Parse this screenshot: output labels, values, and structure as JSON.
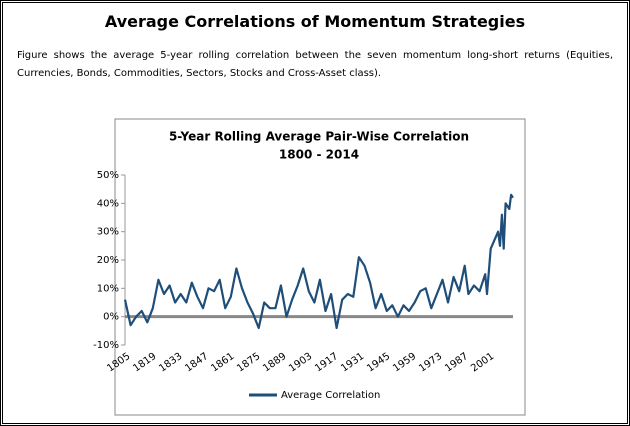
{
  "header": {
    "title": "Average Correlations of Momentum Strategies",
    "description": "Figure shows the average 5-year rolling correlation between the seven momentum long-short returns (Equities, Currencies, Bonds,  Commodities, Sectors, Stocks and Cross-Asset class)."
  },
  "chart_data": {
    "type": "line",
    "title": "5-Year Rolling Average Pair-Wise Correlation",
    "subtitle": "1800 - 2014",
    "x": [
      1805,
      1808,
      1811,
      1814,
      1817,
      1820,
      1823,
      1826,
      1829,
      1832,
      1835,
      1838,
      1841,
      1844,
      1847,
      1850,
      1853,
      1856,
      1859,
      1862,
      1865,
      1868,
      1871,
      1874,
      1877,
      1880,
      1883,
      1886,
      1889,
      1892,
      1895,
      1898,
      1901,
      1904,
      1907,
      1910,
      1913,
      1916,
      1919,
      1922,
      1925,
      1928,
      1931,
      1934,
      1937,
      1940,
      1943,
      1946,
      1949,
      1952,
      1955,
      1958,
      1961,
      1964,
      1967,
      1970,
      1973,
      1976,
      1979,
      1982,
      1985,
      1988,
      1990,
      1993,
      1996,
      1999,
      2000,
      2002,
      2004,
      2006,
      2007,
      2008,
      2009,
      2010,
      2012,
      2013,
      2014
    ],
    "series": [
      {
        "name": "Average Correlation",
        "color": "#1f4e79",
        "values": [
          6,
          -3,
          0,
          2,
          -2,
          3,
          13,
          8,
          11,
          5,
          8,
          5,
          12,
          7,
          3,
          10,
          9,
          13,
          3,
          7,
          17,
          10,
          5,
          1,
          -4,
          5,
          3,
          3,
          11,
          0,
          6,
          11,
          17,
          9,
          5,
          13,
          2,
          8,
          -4,
          6,
          8,
          7,
          21,
          18,
          12,
          3,
          8,
          2,
          4,
          0,
          4,
          2,
          5,
          9,
          10,
          3,
          8,
          13,
          5,
          14,
          9,
          18,
          8,
          11,
          9,
          15,
          8,
          24,
          27,
          30,
          25,
          36,
          24,
          40,
          38,
          43,
          42
        ]
      }
    ],
    "xlim": [
      1805,
      2014
    ],
    "xticks": [
      1805,
      1819,
      1833,
      1847,
      1861,
      1875,
      1889,
      1903,
      1917,
      1931,
      1945,
      1959,
      1973,
      1987,
      2001
    ],
    "ylim": [
      -10,
      50
    ],
    "yticks": [
      {
        "value": -10,
        "label": "-10%"
      },
      {
        "value": 0,
        "label": "0%"
      },
      {
        "value": 10,
        "label": "10%"
      },
      {
        "value": 20,
        "label": "20%"
      },
      {
        "value": 30,
        "label": "30%"
      },
      {
        "value": 40,
        "label": "40%"
      },
      {
        "value": 50,
        "label": "50%"
      }
    ],
    "legend": "bottom"
  }
}
